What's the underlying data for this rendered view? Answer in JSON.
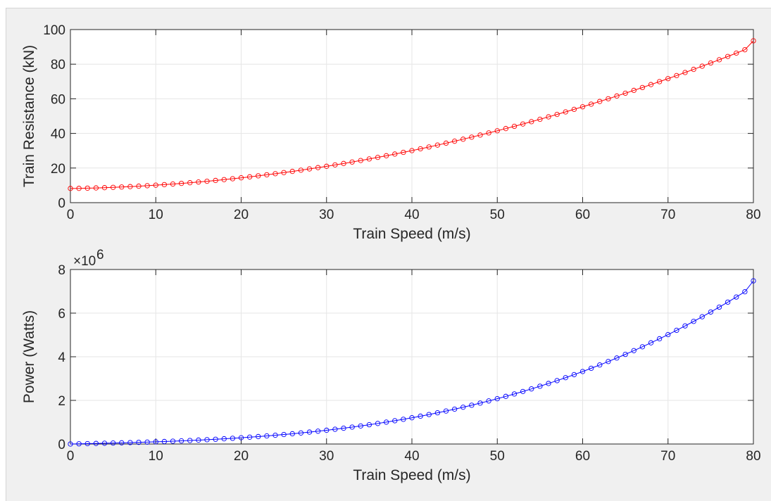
{
  "chart_data": [
    {
      "type": "line",
      "xlabel": "Train Speed (m/s)",
      "ylabel": "Train Resistance (kN)",
      "xlim": [
        0,
        80
      ],
      "ylim": [
        0,
        100
      ],
      "xticks": [
        "0",
        "10",
        "20",
        "30",
        "40",
        "50",
        "60",
        "70",
        "80"
      ],
      "yticks": [
        "0",
        "20",
        "40",
        "60",
        "80",
        "100"
      ],
      "grid": true,
      "marker": "circle",
      "series": [
        {
          "color": "#ff0000",
          "x": [
            0,
            1,
            2,
            3,
            4,
            5,
            6,
            7,
            8,
            9,
            10,
            11,
            12,
            13,
            14,
            15,
            16,
            17,
            18,
            19,
            20,
            21,
            22,
            23,
            24,
            25,
            26,
            27,
            28,
            29,
            30,
            31,
            32,
            33,
            34,
            35,
            36,
            37,
            38,
            39,
            40,
            41,
            42,
            43,
            44,
            45,
            46,
            47,
            48,
            49,
            50,
            51,
            52,
            53,
            54,
            55,
            56,
            57,
            58,
            59,
            60,
            61,
            62,
            63,
            64,
            65,
            66,
            67,
            68,
            69,
            70,
            71,
            72,
            73,
            74,
            75,
            76,
            77,
            78,
            79,
            80
          ],
          "y": [
            8.2,
            8.25,
            8.38,
            8.51,
            8.66,
            8.84,
            9.04,
            9.27,
            9.52,
            9.79,
            10.09,
            10.41,
            10.75,
            11.12,
            11.51,
            11.92,
            12.36,
            12.82,
            13.31,
            13.82,
            14.35,
            14.91,
            15.49,
            16.1,
            16.73,
            17.38,
            18.06,
            18.76,
            19.49,
            20.24,
            21.01,
            21.81,
            22.63,
            23.48,
            24.35,
            25.24,
            26.16,
            27.1,
            28.07,
            29.06,
            30.07,
            31.11,
            32.17,
            33.26,
            34.37,
            35.5,
            36.66,
            37.84,
            39.05,
            40.28,
            41.53,
            42.81,
            44.11,
            45.44,
            46.79,
            48.16,
            49.56,
            50.98,
            52.43,
            53.9,
            55.39,
            56.91,
            58.45,
            60.02,
            61.61,
            63.22,
            64.86,
            66.52,
            68.21,
            69.92,
            71.65,
            73.41,
            75.19,
            77.0,
            78.83,
            80.68,
            82.56,
            84.46,
            86.39,
            88.34,
            93.5
          ]
        }
      ]
    },
    {
      "type": "line",
      "xlabel": "Train Speed (m/s)",
      "ylabel": "Power (Watts)",
      "exponent_label": "×10",
      "exponent_value": "6",
      "xlim": [
        0,
        80
      ],
      "ylim": [
        0,
        8000000
      ],
      "xticks": [
        "0",
        "10",
        "20",
        "30",
        "40",
        "50",
        "60",
        "70",
        "80"
      ],
      "yticks": [
        "0",
        "2",
        "4",
        "6",
        "8"
      ],
      "grid": true,
      "marker": "circle",
      "series": [
        {
          "color": "#0000ff",
          "x": [
            0,
            1,
            2,
            3,
            4,
            5,
            6,
            7,
            8,
            9,
            10,
            11,
            12,
            13,
            14,
            15,
            16,
            17,
            18,
            19,
            20,
            21,
            22,
            23,
            24,
            25,
            26,
            27,
            28,
            29,
            30,
            31,
            32,
            33,
            34,
            35,
            36,
            37,
            38,
            39,
            40,
            41,
            42,
            43,
            44,
            45,
            46,
            47,
            48,
            49,
            50,
            51,
            52,
            53,
            54,
            55,
            56,
            57,
            58,
            59,
            60,
            61,
            62,
            63,
            64,
            65,
            66,
            67,
            68,
            69,
            70,
            71,
            72,
            73,
            74,
            75,
            76,
            77,
            78,
            79,
            80
          ],
          "y": [
            0,
            8250,
            16760,
            25530,
            34640,
            44200,
            54240,
            64890,
            76160,
            88110,
            100900,
            114510,
            129000,
            144560,
            161140,
            178800,
            197760,
            217940,
            239580,
            262580,
            287000,
            313110,
            340780,
            370300,
            401520,
            434500,
            469560,
            506520,
            545720,
            586960,
            630300,
            676110,
            724160,
            774840,
            827900,
            883400,
            941760,
            1002700,
            1066660,
            1133340,
            1202800,
            1275510,
            1351140,
            1430180,
            1512280,
            1597500,
            1686360,
            1778480,
            1874400,
            1973720,
            2076500,
            2183310,
            2293720,
            2408320,
            2526660,
            2648800,
            2775360,
            2905860,
            3040940,
            3180100,
            3323400,
            3471510,
            3623900,
            3781260,
            3943040,
            4109300,
            4280760,
            4456840,
            4638280,
            4824480,
            5015500,
            5212110,
            5413680,
            5621000,
            5833420,
            6051000,
            6274560,
            6503420,
            6738420,
            6978860,
            7480000
          ]
        }
      ]
    }
  ]
}
